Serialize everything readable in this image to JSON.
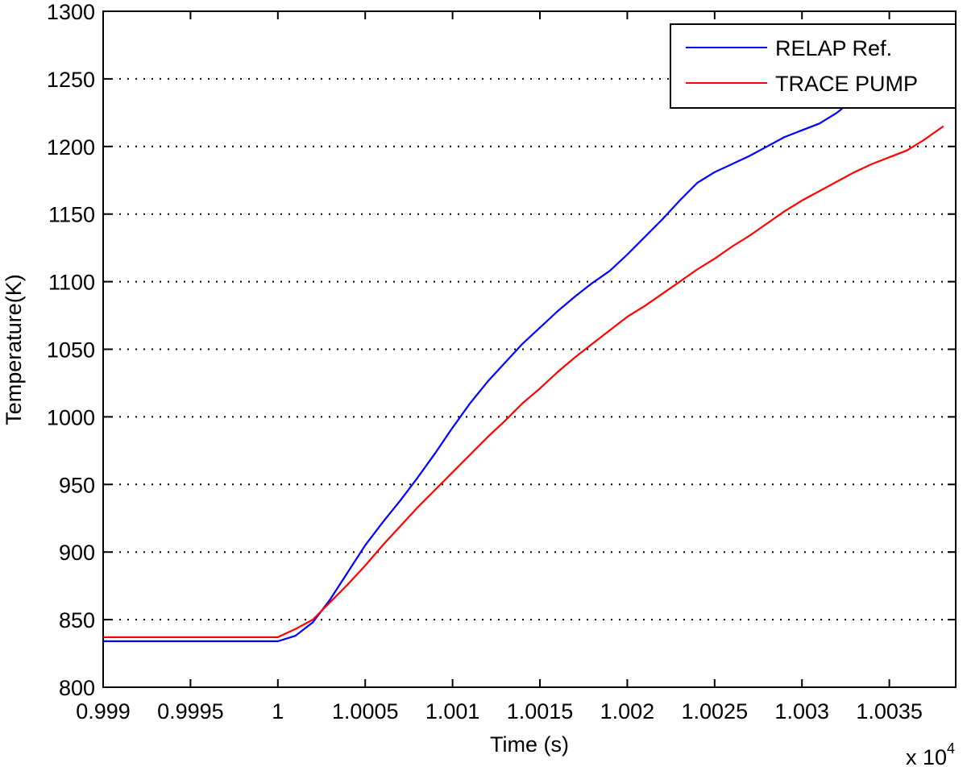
{
  "chart_data": {
    "type": "line",
    "title": "",
    "xlabel": "Time (s)",
    "ylabel": "Temperature(K)",
    "x_multiplier_label": "x 10",
    "x_multiplier_exponent": "4",
    "xlim": [
      0.999,
      1.00388
    ],
    "ylim": [
      800,
      1300
    ],
    "x_ticks": [
      0.999,
      0.9995,
      1,
      1.0005,
      1.001,
      1.0015,
      1.002,
      1.0025,
      1.003,
      1.0035
    ],
    "x_tick_labels": [
      "0.999",
      "0.9995",
      "1",
      "1.0005",
      "1.001",
      "1.0015",
      "1.002",
      "1.0025",
      "1.003",
      "1.0035"
    ],
    "y_ticks": [
      800,
      850,
      900,
      950,
      1000,
      1050,
      1100,
      1150,
      1200,
      1250,
      1300
    ],
    "y_tick_labels": [
      "800",
      "850",
      "900",
      "950",
      "1000",
      "1050",
      "1100",
      "1150",
      "1200",
      "1250",
      "1300"
    ],
    "grid": "horizontal dotted",
    "legend_position": "top-right",
    "series": [
      {
        "name": "RELAP Ref.",
        "color": "#0000ff",
        "points": [
          [
            0.999,
            834
          ],
          [
            1.0,
            834
          ],
          [
            1.0001,
            838
          ],
          [
            1.0002,
            848
          ],
          [
            1.0003,
            865
          ],
          [
            1.0004,
            885
          ],
          [
            1.0005,
            905
          ],
          [
            1.0006,
            922
          ],
          [
            1.0007,
            938
          ],
          [
            1.0008,
            955
          ],
          [
            1.0009,
            973
          ],
          [
            1.001,
            992
          ],
          [
            1.0011,
            1010
          ],
          [
            1.0012,
            1026
          ],
          [
            1.0013,
            1040
          ],
          [
            1.0014,
            1054
          ],
          [
            1.0015,
            1066
          ],
          [
            1.0016,
            1078
          ],
          [
            1.0017,
            1089
          ],
          [
            1.0018,
            1099
          ],
          [
            1.0019,
            1108
          ],
          [
            1.002,
            1120
          ],
          [
            1.0021,
            1133
          ],
          [
            1.0022,
            1146
          ],
          [
            1.0023,
            1160
          ],
          [
            1.0024,
            1173
          ],
          [
            1.0025,
            1181
          ],
          [
            1.0026,
            1187
          ],
          [
            1.0027,
            1193
          ],
          [
            1.0028,
            1200
          ],
          [
            1.0029,
            1207
          ],
          [
            1.003,
            1212
          ],
          [
            1.0031,
            1217
          ],
          [
            1.0032,
            1225
          ],
          [
            1.00323,
            1228
          ]
        ]
      },
      {
        "name": "TRACE PUMP",
        "color": "#ff0000",
        "points": [
          [
            0.999,
            837
          ],
          [
            1.0,
            837
          ],
          [
            1.0001,
            843
          ],
          [
            1.0002,
            850
          ],
          [
            1.0003,
            863
          ],
          [
            1.0004,
            876
          ],
          [
            1.0005,
            890
          ],
          [
            1.0006,
            905
          ],
          [
            1.0007,
            919
          ],
          [
            1.0008,
            933
          ],
          [
            1.0009,
            946
          ],
          [
            1.001,
            959
          ],
          [
            1.0011,
            972
          ],
          [
            1.0012,
            985
          ],
          [
            1.0013,
            997
          ],
          [
            1.0014,
            1010
          ],
          [
            1.0015,
            1021
          ],
          [
            1.0016,
            1033
          ],
          [
            1.0017,
            1044
          ],
          [
            1.0018,
            1054
          ],
          [
            1.0019,
            1064
          ],
          [
            1.002,
            1074
          ],
          [
            1.0021,
            1082
          ],
          [
            1.0022,
            1091
          ],
          [
            1.0023,
            1100
          ],
          [
            1.0024,
            1109
          ],
          [
            1.0025,
            1117
          ],
          [
            1.0026,
            1126
          ],
          [
            1.0027,
            1134
          ],
          [
            1.0028,
            1143
          ],
          [
            1.0029,
            1152
          ],
          [
            1.003,
            1160
          ],
          [
            1.0031,
            1167
          ],
          [
            1.0032,
            1174
          ],
          [
            1.0033,
            1181
          ],
          [
            1.0034,
            1187
          ],
          [
            1.0035,
            1192
          ],
          [
            1.0036,
            1197
          ],
          [
            1.0037,
            1205
          ],
          [
            1.00381,
            1215
          ]
        ]
      }
    ]
  }
}
